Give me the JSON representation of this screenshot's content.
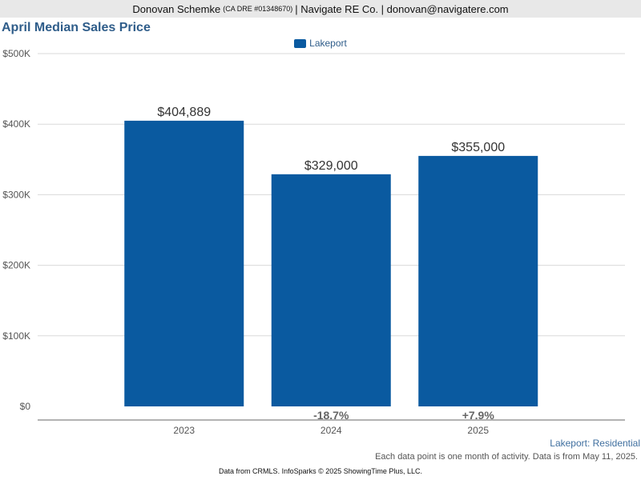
{
  "header": {
    "agent_name": "Donovan Schemke",
    "license": "(CA DRE #01348670)",
    "rest": "| Navigate RE Co. | donovan@navigatere.com"
  },
  "footer": {
    "segment": "Lakeport: Residential",
    "note": "Each data point is one month of activity. Data is from May 11, 2025.",
    "credit": "Data from CRMLS. InfoSparks © 2025 ShowingTime Plus, LLC."
  },
  "colors": {
    "bar": "#0a5aa0",
    "title": "#2f5d8a"
  },
  "chart_data": {
    "type": "bar",
    "title": "April Median Sales Price",
    "xlabel": "",
    "ylabel": "",
    "categories": [
      "2023",
      "2024",
      "2025"
    ],
    "series": [
      {
        "name": "Lakeport",
        "values": [
          404889,
          329000,
          355000
        ]
      }
    ],
    "data_labels": [
      "$404,889",
      "$329,000",
      "$355,000"
    ],
    "change_labels": [
      "",
      "-18.7%",
      "+7.9%"
    ],
    "ylim": [
      0,
      500000
    ],
    "yticks": [
      0,
      100000,
      200000,
      300000,
      400000,
      500000
    ],
    "ytick_labels": [
      "$0",
      "$100K",
      "$200K",
      "$300K",
      "$400K",
      "$500K"
    ],
    "grid": true,
    "legend_position": "top-center"
  }
}
